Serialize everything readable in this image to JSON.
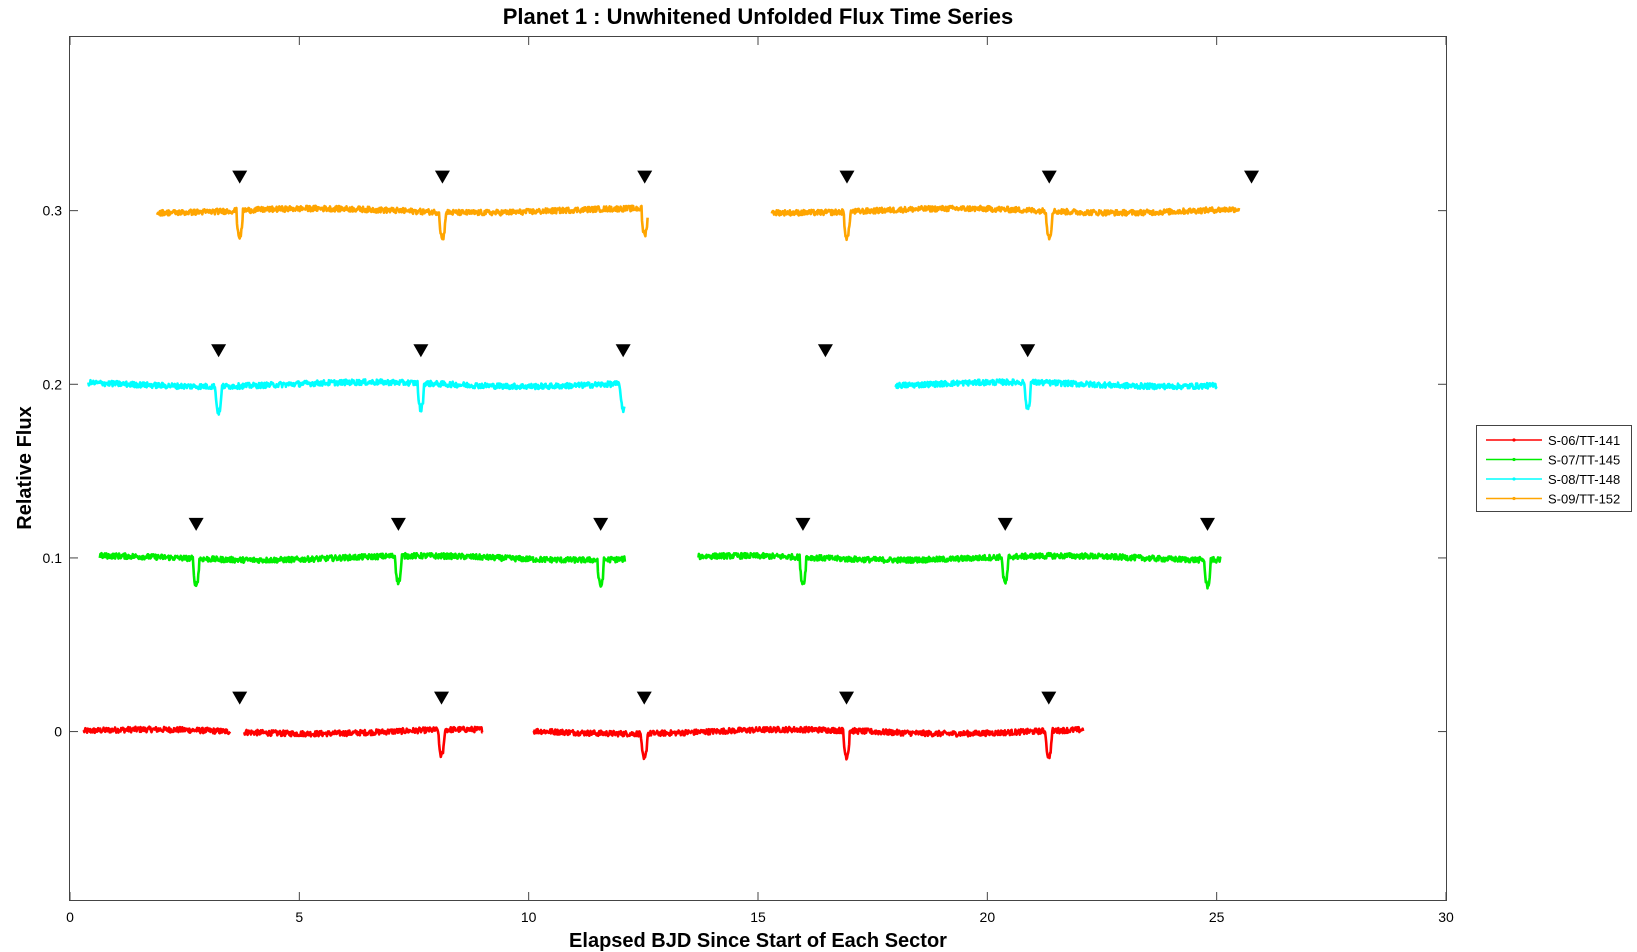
{
  "chart_data": {
    "type": "line",
    "title": "Planet 1 : Unwhitened Unfolded Flux Time Series",
    "xlabel": "Elapsed BJD Since Start of Each Sector",
    "ylabel": "Relative Flux",
    "xlim": [
      0,
      30
    ],
    "ylim": [
      -0.097,
      0.4
    ],
    "xticks": [
      0,
      5,
      10,
      15,
      20,
      25,
      30
    ],
    "xtick_labels": [
      "0",
      "5",
      "10",
      "15",
      "20",
      "25",
      "30"
    ],
    "yticks": [
      0,
      0.1,
      0.2,
      0.3
    ],
    "ytick_labels": [
      "0",
      "0.1",
      "0.2",
      "0.3"
    ],
    "grid": false,
    "legend_position": "right",
    "series": [
      {
        "name": "S-06/TT-141",
        "color": "#ff0000",
        "offset": 0,
        "segments": [
          [
            0.3,
            3.5
          ],
          [
            3.8,
            9.0
          ],
          [
            10.1,
            22.1
          ]
        ],
        "transit_times": [
          8.1,
          12.52,
          16.93,
          21.34
        ],
        "transit_depth": 0.015,
        "marker_times": [
          3.7,
          8.1,
          12.52,
          16.93,
          21.34
        ],
        "marker_y": 0.019
      },
      {
        "name": "S-07/TT-145",
        "color": "#00ee00",
        "offset": 0.1,
        "segments": [
          [
            0.65,
            12.1
          ],
          [
            13.7,
            25.1
          ]
        ],
        "transit_times": [
          2.75,
          7.16,
          11.57,
          15.98,
          20.39,
          24.8
        ],
        "transit_depth": 0.015,
        "marker_times": [
          2.75,
          7.16,
          11.57,
          15.98,
          20.39,
          24.8
        ],
        "marker_y": 0.119
      },
      {
        "name": "S-08/TT-148",
        "color": "#00ffff",
        "offset": 0.2,
        "segments": [
          [
            0.4,
            12.1
          ],
          [
            18.0,
            25.0
          ]
        ],
        "transit_times": [
          3.24,
          7.65,
          12.06,
          20.88
        ],
        "transit_depth": 0.015,
        "marker_times": [
          3.24,
          7.65,
          12.06,
          16.47,
          20.88
        ],
        "marker_y": 0.219
      },
      {
        "name": "S-09/TT-152",
        "color": "#ffa500",
        "offset": 0.3,
        "segments": [
          [
            1.9,
            12.6
          ],
          [
            15.3,
            25.5
          ]
        ],
        "transit_times": [
          3.7,
          8.12,
          12.53,
          16.94,
          21.35
        ],
        "transit_depth": 0.015,
        "marker_times": [
          3.7,
          8.12,
          12.53,
          16.94,
          21.35,
          25.76
        ],
        "marker_y": 0.319
      }
    ]
  }
}
